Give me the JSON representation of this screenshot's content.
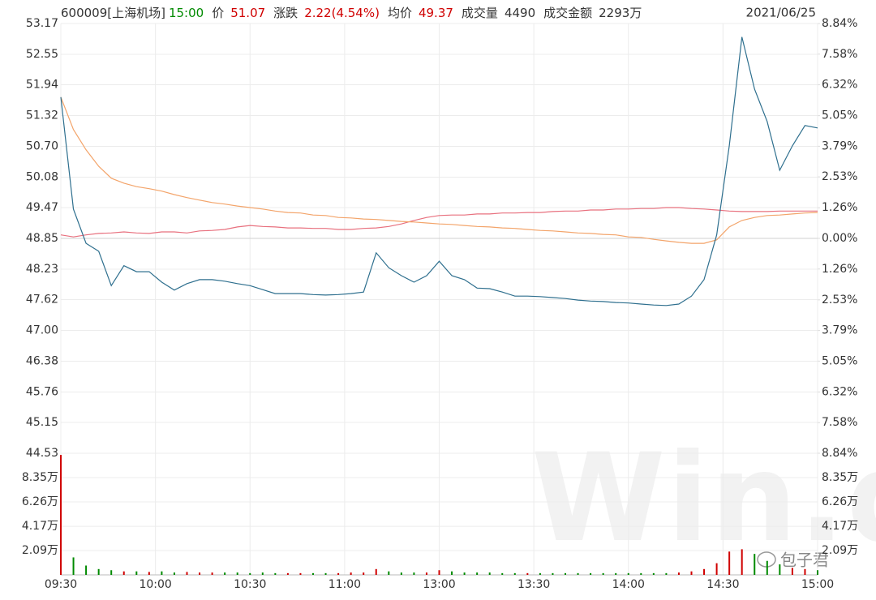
{
  "header": {
    "symbol": "600009[上海机场]",
    "time": "15:00",
    "fields": [
      {
        "label": "价",
        "value": 51.07
      },
      {
        "label": "涨跌",
        "value": "2.22(4.54%)"
      },
      {
        "label": "均价",
        "value": 49.37
      },
      {
        "label": "成交量",
        "value": 4490
      },
      {
        "label": "成交金额",
        "value": "2293万"
      }
    ],
    "date": "2021/06/25"
  },
  "watermark": "Win.d",
  "signature": "包子君",
  "chart_data": [
    {
      "type": "line",
      "up_color": "#d00000",
      "down_color": "#008a00",
      "grid": true,
      "x": [
        0,
        4,
        8,
        12,
        16,
        20,
        24,
        28,
        32,
        36,
        40,
        44,
        48,
        52,
        56,
        60,
        64,
        68,
        72,
        76,
        80,
        84,
        88,
        92,
        96,
        100,
        104,
        108,
        112,
        116,
        120,
        124,
        128,
        132,
        136,
        140,
        144,
        148,
        152,
        156,
        160,
        164,
        168,
        172,
        176,
        180,
        184,
        188,
        192,
        196,
        200,
        204,
        208,
        212,
        216,
        220,
        224,
        228,
        232,
        236,
        240
      ],
      "xlim": [
        0,
        240
      ],
      "ylim": [
        44.53,
        53.17
      ],
      "yticks": [
        53.17,
        52.55,
        51.94,
        51.32,
        {
          "value": 50.7,
          "label": "50.70"
        },
        50.08,
        49.47,
        48.85,
        48.23,
        47.62,
        {
          "value": 47,
          "label": "47.00"
        },
        46.38,
        45.76,
        45.15,
        44.53
      ],
      "y2lim": [
        -8.84,
        8.84
      ],
      "y2ticks": [
        {
          "value": 8.84,
          "label": "8.84%"
        },
        {
          "value": 7.58,
          "label": "7.58%"
        },
        {
          "value": 6.32,
          "label": "6.32%"
        },
        {
          "value": 5.05,
          "label": "5.05%"
        },
        {
          "value": 3.79,
          "label": "3.79%"
        },
        {
          "value": 2.53,
          "label": "2.53%"
        },
        {
          "value": 1.26,
          "label": "1.26%"
        },
        {
          "value": 0,
          "label": "0.00%"
        },
        {
          "value": -1.26,
          "label": "1.26%"
        },
        {
          "value": -2.53,
          "label": "2.53%"
        },
        {
          "value": -3.79,
          "label": "3.79%"
        },
        {
          "value": -5.05,
          "label": "5.05%"
        },
        {
          "value": -6.32,
          "label": "6.32%"
        },
        {
          "value": -7.58,
          "label": "7.58%"
        },
        {
          "value": -8.84,
          "label": "8.84%"
        }
      ],
      "series": [
        {
          "color": "#e8707e",
          "values": [
            48.92,
            48.88,
            48.92,
            48.95,
            48.96,
            48.98,
            48.96,
            48.95,
            48.98,
            48.98,
            48.96,
            49.0,
            49.01,
            49.03,
            49.08,
            49.11,
            49.09,
            49.08,
            49.06,
            49.06,
            49.05,
            49.05,
            49.03,
            49.03,
            49.05,
            49.06,
            49.09,
            49.14,
            49.21,
            49.27,
            49.31,
            49.32,
            49.32,
            49.34,
            49.34,
            49.36,
            49.36,
            49.37,
            49.37,
            49.39,
            49.4,
            49.4,
            49.42,
            49.42,
            49.44,
            49.44,
            49.45,
            49.45,
            49.47,
            49.47,
            49.45,
            49.44,
            49.42,
            49.4,
            49.39,
            49.39,
            49.39,
            49.4,
            49.4,
            49.4,
            49.4
          ]
        },
        {
          "color": "#f3a46a",
          "values": [
            51.69,
            51.04,
            50.63,
            50.3,
            50.06,
            49.96,
            49.89,
            49.85,
            49.8,
            49.73,
            49.67,
            49.62,
            49.57,
            49.54,
            49.5,
            49.47,
            49.44,
            49.4,
            49.37,
            49.36,
            49.32,
            49.31,
            49.27,
            49.26,
            49.24,
            49.23,
            49.21,
            49.19,
            49.18,
            49.16,
            49.14,
            49.13,
            49.11,
            49.09,
            49.08,
            49.06,
            49.05,
            49.03,
            49.01,
            49.0,
            48.98,
            48.96,
            48.95,
            48.93,
            48.92,
            48.88,
            48.87,
            48.83,
            48.8,
            48.77,
            48.75,
            48.75,
            48.82,
            49.08,
            49.21,
            49.27,
            49.31,
            49.32,
            49.34,
            49.36,
            49.37
          ]
        },
        {
          "color": "#2e6f8e",
          "values": [
            51.69,
            49.44,
            48.75,
            48.59,
            47.9,
            48.3,
            48.18,
            48.18,
            47.97,
            47.81,
            47.94,
            48.02,
            48.02,
            47.99,
            47.94,
            47.9,
            47.82,
            47.74,
            47.74,
            47.74,
            47.72,
            47.71,
            47.72,
            47.74,
            47.77,
            48.56,
            48.26,
            48.1,
            47.97,
            48.1,
            48.39,
            48.1,
            48.02,
            47.85,
            47.84,
            47.77,
            47.69,
            47.69,
            47.68,
            47.66,
            47.64,
            47.61,
            47.59,
            47.58,
            47.56,
            47.55,
            47.53,
            47.51,
            47.5,
            47.53,
            47.69,
            48.02,
            48.92,
            50.71,
            52.9,
            51.85,
            51.2,
            50.22,
            50.71,
            51.12,
            51.07
          ]
        }
      ]
    },
    {
      "type": "bar",
      "values": [
        10.3,
        1.5,
        0.8,
        0.5,
        0.4,
        0.3,
        0.3,
        0.25,
        0.3,
        0.2,
        0.25,
        0.2,
        0.2,
        0.2,
        0.2,
        0.15,
        0.2,
        0.15,
        0.15,
        0.15,
        0.15,
        0.15,
        0.15,
        0.2,
        0.2,
        0.5,
        0.3,
        0.2,
        0.2,
        0.2,
        0.4,
        0.3,
        0.2,
        0.2,
        0.2,
        0.15,
        0.15,
        0.15,
        0.15,
        0.15,
        0.15,
        0.15,
        0.15,
        0.15,
        0.15,
        0.15,
        0.15,
        0.15,
        0.15,
        0.2,
        0.3,
        0.5,
        1.0,
        2.0,
        2.2,
        1.8,
        1.2,
        0.9,
        0.6,
        0.5,
        0.4
      ],
      "ylim": [
        0,
        10.44
      ],
      "yticks": [
        {
          "value": 8.35,
          "label": "8.35万"
        },
        {
          "value": 6.26,
          "label": "6.26万"
        },
        {
          "value": 4.17,
          "label": "4.17万"
        },
        {
          "value": 2.09,
          "label": "2.09万"
        }
      ],
      "xticks": [
        {
          "value": 0,
          "label": "09:30"
        },
        {
          "value": 30,
          "label": "10:00"
        },
        {
          "value": 60,
          "label": "10:30"
        },
        {
          "value": 90,
          "label": "11:00"
        },
        {
          "value": 120,
          "label": "13:00"
        },
        {
          "value": 150,
          "label": "13:30"
        },
        {
          "value": 180,
          "label": "14:00"
        },
        {
          "value": 210,
          "label": "14:30"
        },
        {
          "value": 240,
          "label": "15:00"
        }
      ]
    }
  ]
}
